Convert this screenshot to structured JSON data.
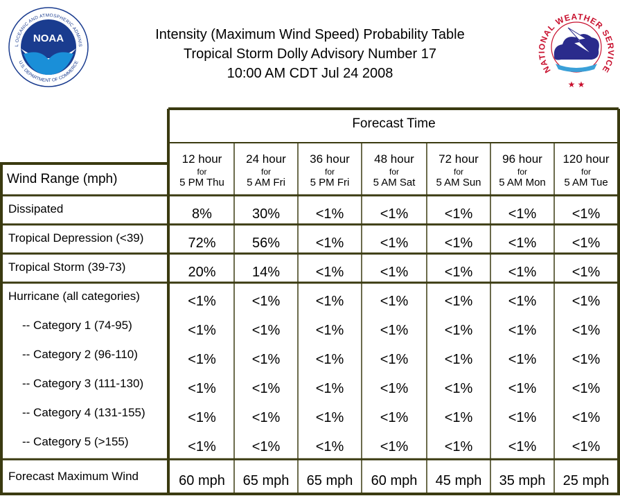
{
  "header": {
    "line1": "Intensity (Maximum Wind Speed) Probability Table",
    "line2": "Tropical Storm Dolly Advisory Number 17",
    "line3": "10:00 AM CDT Jul 24 2008"
  },
  "logos": {
    "noaa": {
      "center_text": "NOAA",
      "ring_top": "NATIONAL OCEANIC AND ATMOSPHERIC ADMINISTRATION",
      "ring_bottom": "U.S. DEPARTMENT OF COMMERCE",
      "color": "#1a3c8f"
    },
    "nws": {
      "ring_text": "NATIONAL WEATHER SERVICE",
      "color": "#c8102e"
    }
  },
  "table": {
    "forecast_time_label": "Forecast Time",
    "wind_range_label": "Wind Range (mph)",
    "columns": [
      {
        "hour": "12 hour",
        "for": "for",
        "time": "5 PM Thu"
      },
      {
        "hour": "24 hour",
        "for": "for",
        "time": "5 AM Fri"
      },
      {
        "hour": "36 hour",
        "for": "for",
        "time": "5 PM Fri"
      },
      {
        "hour": "48 hour",
        "for": "for",
        "time": "5 AM Sat"
      },
      {
        "hour": "72 hour",
        "for": "for",
        "time": "5 AM Sun"
      },
      {
        "hour": "96 hour",
        "for": "for",
        "time": "5 AM Mon"
      },
      {
        "hour": "120 hour",
        "for": "for",
        "time": "5 AM Tue"
      }
    ],
    "rows": [
      {
        "label": "Dissipated",
        "values": [
          "8%",
          "30%",
          "<1%",
          "<1%",
          "<1%",
          "<1%",
          "<1%"
        ]
      },
      {
        "label": "Tropical Depression (<39)",
        "values": [
          "72%",
          "56%",
          "<1%",
          "<1%",
          "<1%",
          "<1%",
          "<1%"
        ]
      },
      {
        "label": "Tropical Storm (39-73)",
        "values": [
          "20%",
          "14%",
          "<1%",
          "<1%",
          "<1%",
          "<1%",
          "<1%"
        ]
      },
      {
        "label": "Hurricane (all categories)",
        "values": [
          "<1%",
          "<1%",
          "<1%",
          "<1%",
          "<1%",
          "<1%",
          "<1%"
        ]
      },
      {
        "label": "-- Category 1 (74-95)",
        "values": [
          "<1%",
          "<1%",
          "<1%",
          "<1%",
          "<1%",
          "<1%",
          "<1%"
        ]
      },
      {
        "label": "-- Category 2 (96-110)",
        "values": [
          "<1%",
          "<1%",
          "<1%",
          "<1%",
          "<1%",
          "<1%",
          "<1%"
        ]
      },
      {
        "label": "-- Category 3 (111-130)",
        "values": [
          "<1%",
          "<1%",
          "<1%",
          "<1%",
          "<1%",
          "<1%",
          "<1%"
        ]
      },
      {
        "label": "-- Category 4 (131-155)",
        "values": [
          "<1%",
          "<1%",
          "<1%",
          "<1%",
          "<1%",
          "<1%",
          "<1%"
        ]
      },
      {
        "label": "-- Category 5 (>155)",
        "values": [
          "<1%",
          "<1%",
          "<1%",
          "<1%",
          "<1%",
          "<1%",
          "<1%"
        ]
      }
    ],
    "max_wind": {
      "label": "Forecast Maximum Wind",
      "values": [
        "60 mph",
        "65 mph",
        "65 mph",
        "60 mph",
        "45 mph",
        "35 mph",
        "25 mph"
      ]
    },
    "border_color": "#3a3a10"
  }
}
